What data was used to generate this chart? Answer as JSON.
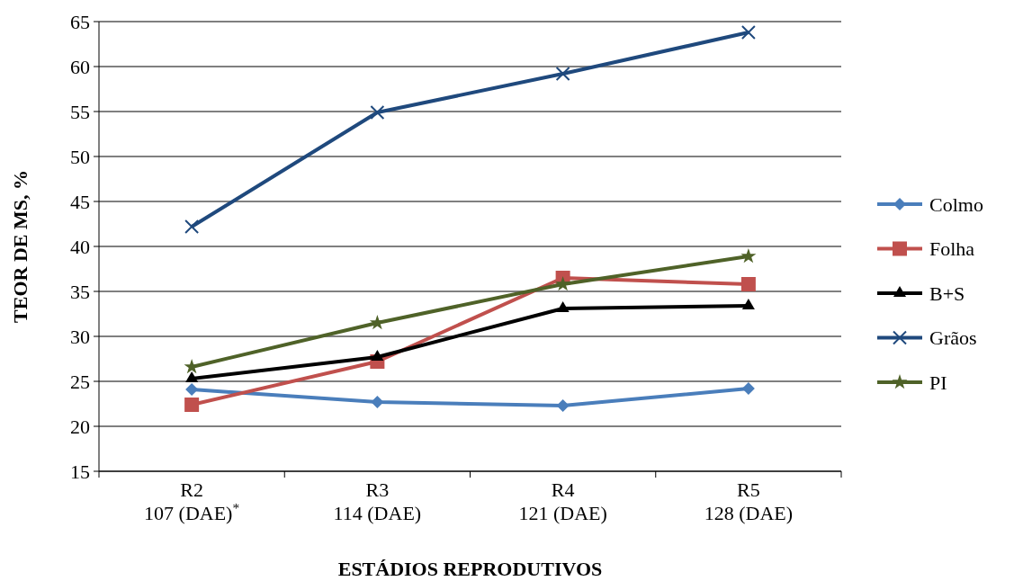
{
  "chart_data": {
    "type": "line",
    "xlabel": "ESTÁDIOS REPRODUTIVOS",
    "ylabel": "TEOR DE MS, %",
    "categories": [
      "R2\n107 (DAE)$^{*}$",
      "R3\n114 (DAE)",
      "R4\n121 (DAE)",
      "R5\n128 (DAE)"
    ],
    "ylim": [
      15,
      65
    ],
    "yticks": [
      15,
      20,
      25,
      30,
      35,
      40,
      45,
      50,
      55,
      60,
      65
    ],
    "grid": "y",
    "legend": "right",
    "series": [
      {
        "name": "Colmo",
        "color": "#4a7ebb",
        "marker": "diamond",
        "values": [
          24.1,
          22.7,
          22.3,
          24.2
        ]
      },
      {
        "name": "Folha",
        "color": "#c0504d",
        "marker": "square",
        "values": [
          22.4,
          27.2,
          36.5,
          35.8
        ]
      },
      {
        "name": "B+S",
        "color": "#000000",
        "marker": "triangle",
        "values": [
          25.3,
          27.7,
          33.1,
          33.4
        ]
      },
      {
        "name": "Grãos",
        "color": "#1f497d",
        "marker": "cross",
        "values": [
          42.2,
          54.9,
          59.2,
          63.8
        ]
      },
      {
        "name": "PI",
        "color": "#4f6228",
        "marker": "star",
        "values": [
          26.6,
          31.5,
          35.8,
          38.9
        ]
      }
    ]
  }
}
